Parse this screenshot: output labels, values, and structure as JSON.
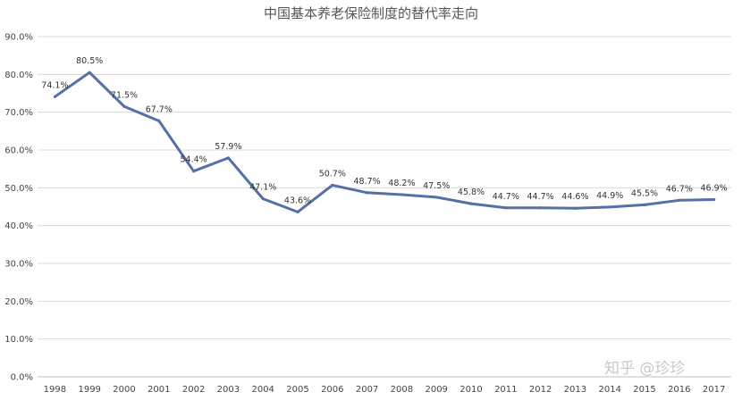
{
  "chart_data": {
    "type": "line",
    "title": "中国基本养老保险制度的替代率走向",
    "xlabel": "",
    "ylabel": "",
    "categories": [
      "1998",
      "1999",
      "2000",
      "2001",
      "2002",
      "2003",
      "2004",
      "2005",
      "2006",
      "2007",
      "2008",
      "2009",
      "2010",
      "2011",
      "2012",
      "2013",
      "2014",
      "2015",
      "2016",
      "2017"
    ],
    "series": [
      {
        "name": "替代率",
        "values": [
          74.1,
          80.5,
          71.5,
          67.7,
          54.4,
          57.9,
          47.1,
          43.6,
          50.7,
          48.7,
          48.2,
          47.5,
          45.8,
          44.7,
          44.7,
          44.6,
          44.9,
          45.5,
          46.7,
          46.9
        ],
        "labels": [
          "74.1%",
          "80.5%",
          "71.5%",
          "67.7%",
          "54.4%",
          "57.9%",
          "47.1%",
          "43.6%",
          "50.7%",
          "48.7%",
          "48.2%",
          "47.5%",
          "45.8%",
          "44.7%",
          "44.7%",
          "44.6%",
          "44.9%",
          "45.5%",
          "46.7%",
          "46.9%"
        ],
        "color": "#5470a5"
      }
    ],
    "ylim": [
      0,
      90
    ],
    "yticks": [
      "0.0%",
      "10.0%",
      "20.0%",
      "30.0%",
      "40.0%",
      "50.0%",
      "60.0%",
      "70.0%",
      "80.0%",
      "90.0%"
    ],
    "grid": true,
    "legend": "none"
  },
  "watermark": "知乎 @珍珍",
  "colors": {
    "line": "#5470a5",
    "grid": "#d9d9d9",
    "axis": "#bfbfbf"
  }
}
